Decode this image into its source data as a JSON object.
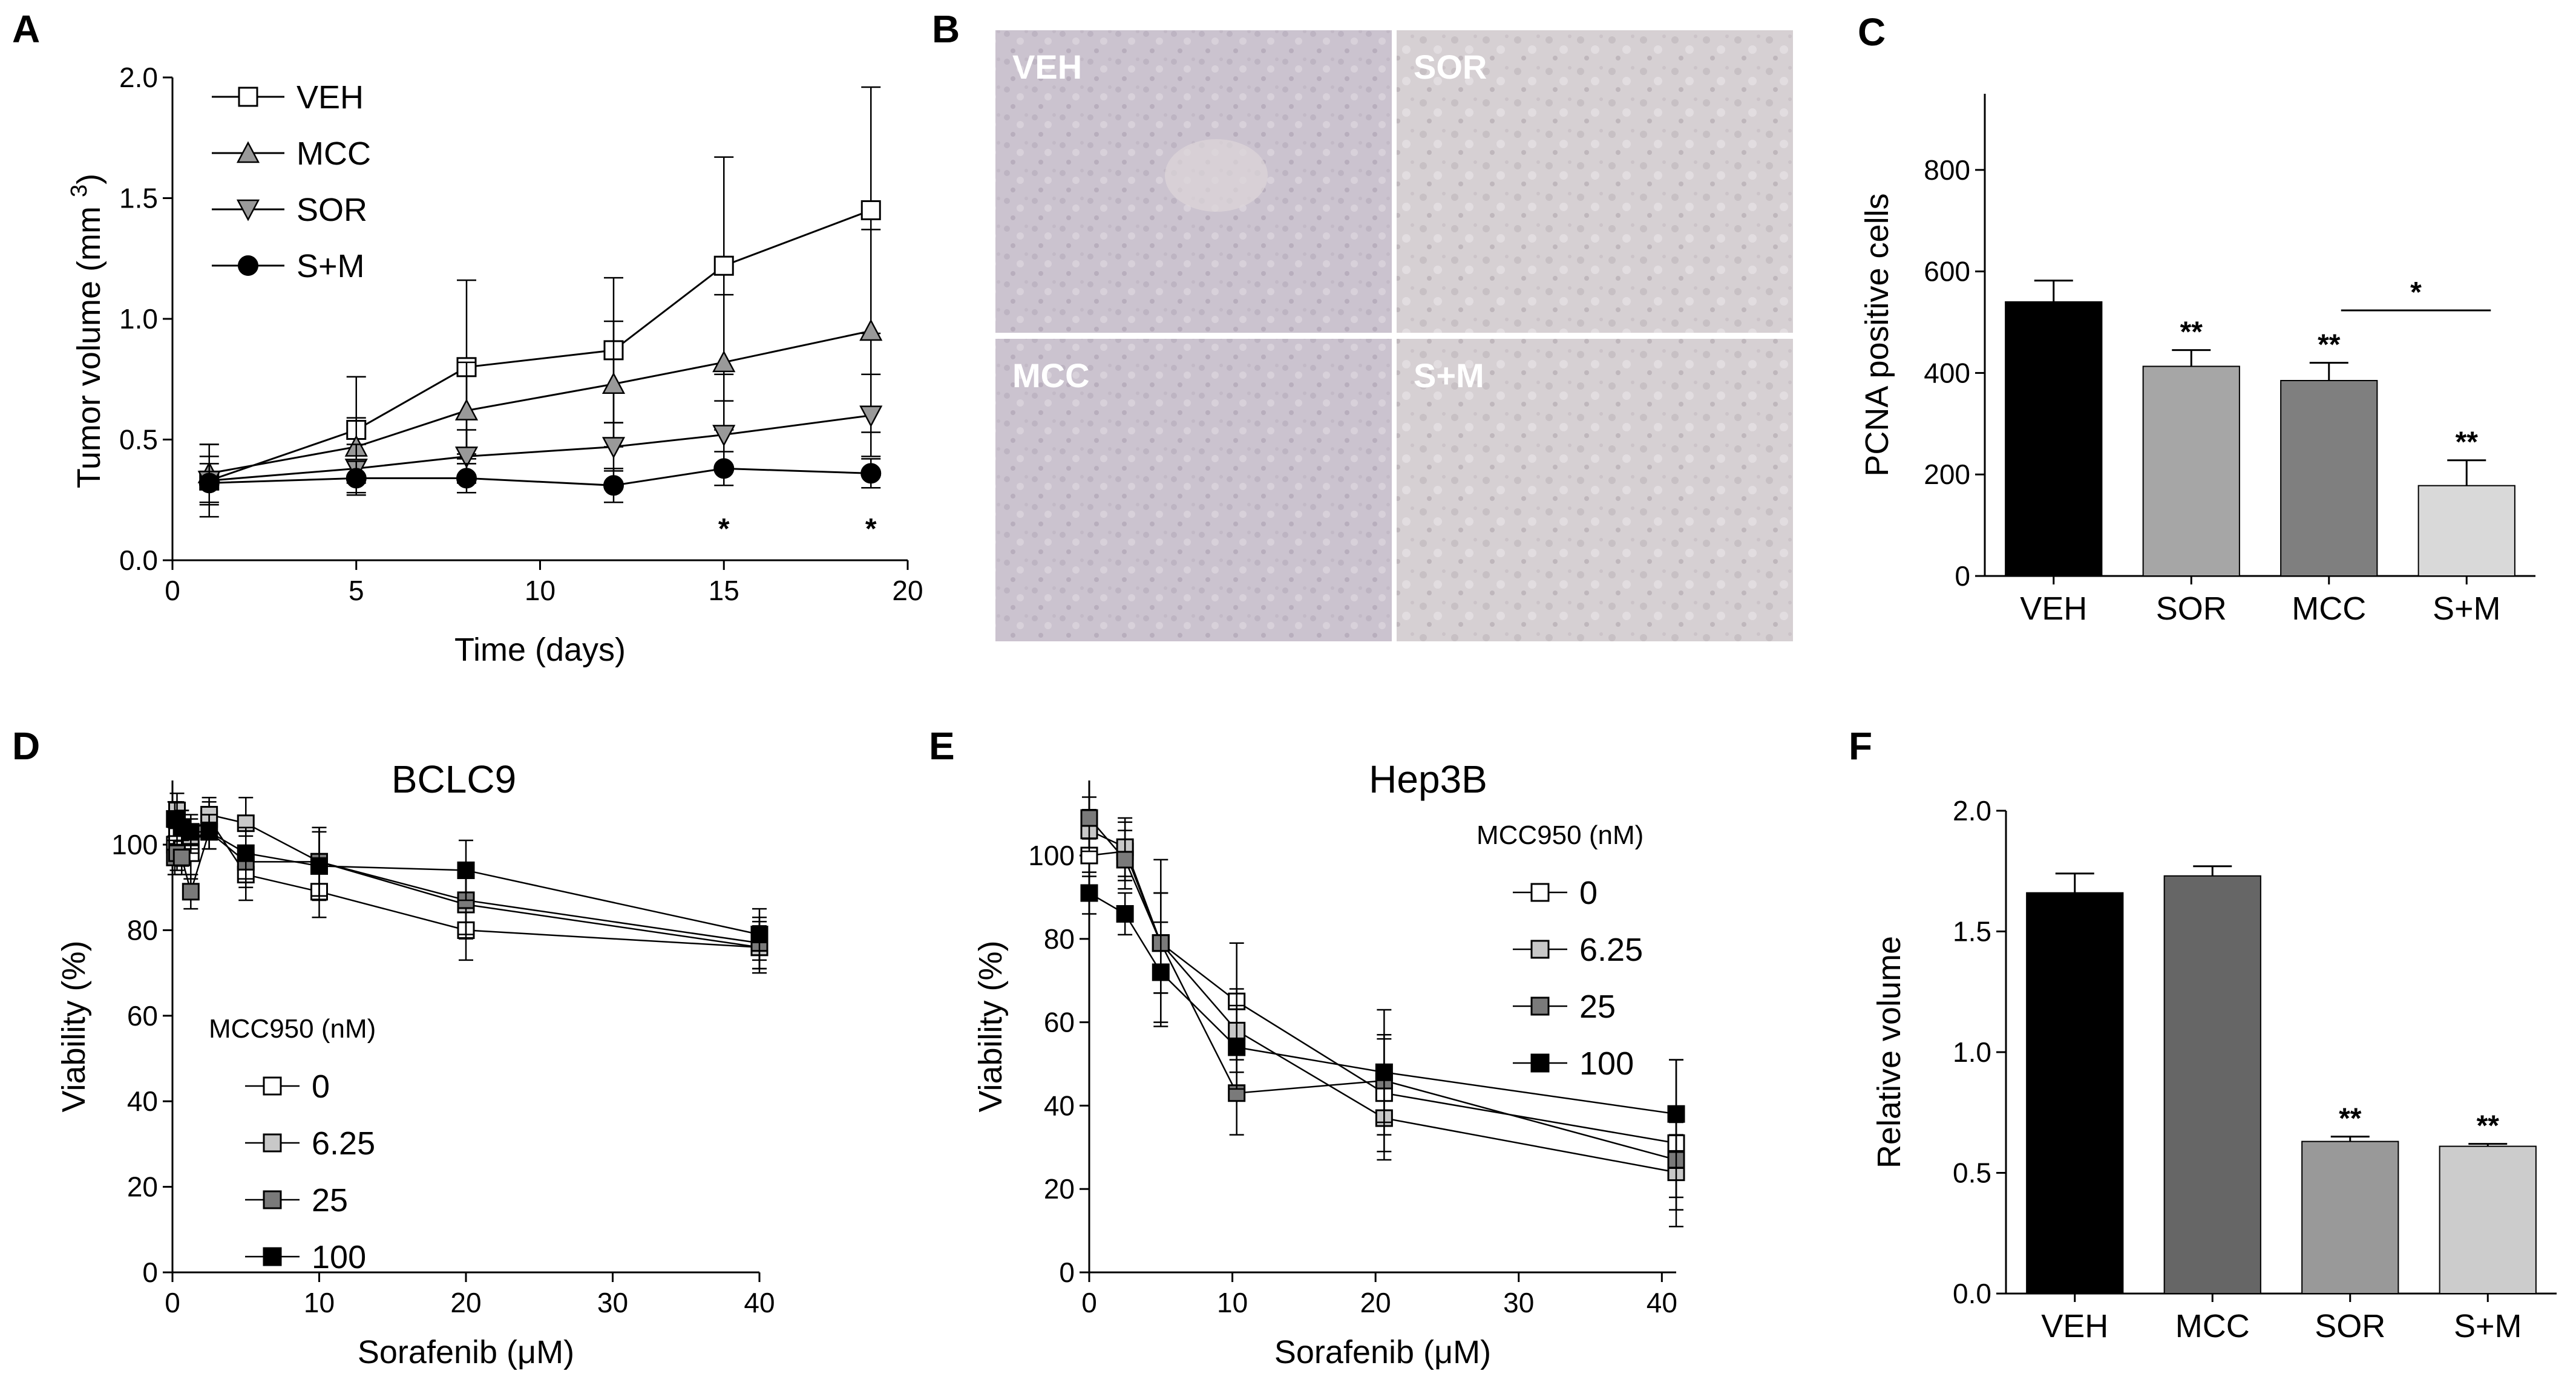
{
  "panels": {
    "A": {
      "letter": "A",
      "chart_data": {
        "type": "line",
        "x": [
          1,
          5,
          8,
          12,
          15,
          19
        ],
        "xlabel": "Time (days)",
        "ylabel": "Tumor volume (mm",
        "ylabel_sup": "3",
        "ylabel_close": ")",
        "xlim": [
          0,
          20
        ],
        "ylim": [
          0,
          2.0
        ],
        "xticks": [
          0,
          5,
          10,
          15,
          20
        ],
        "xtick_labels": [
          "0",
          "5",
          "10",
          "15",
          "20"
        ],
        "yticks": [
          0,
          0.5,
          1.0,
          1.5,
          2.0
        ],
        "ytick_labels": [
          "0.0",
          "0.5",
          "1.0",
          "1.5",
          "2.0"
        ],
        "series": [
          {
            "name": "VEH",
            "marker": "square-open",
            "values": [
              0.33,
              0.54,
              0.8,
              0.87,
              1.22,
              1.45
            ],
            "err": [
              0.15,
              0.22,
              0.36,
              0.3,
              0.45,
              0.51
            ]
          },
          {
            "name": "MCC",
            "marker": "triangle-up",
            "values": [
              0.36,
              0.47,
              0.62,
              0.73,
              0.82,
              0.95
            ],
            "err": [
              0.12,
              0.12,
              0.2,
              0.26,
              0.28,
              0.42
            ]
          },
          {
            "name": "SOR",
            "marker": "triangle-down",
            "values": [
              0.33,
              0.38,
              0.43,
              0.47,
              0.52,
              0.6
            ],
            "err": [
              0.1,
              0.1,
              0.11,
              0.1,
              0.14,
              0.17
            ]
          },
          {
            "name": "S+M",
            "marker": "circle-filled",
            "values": [
              0.32,
              0.34,
              0.34,
              0.31,
              0.38,
              0.36
            ],
            "err": [
              0.08,
              0.07,
              0.06,
              0.07,
              0.07,
              0.06
            ]
          }
        ],
        "annotations": [
          {
            "x": 15,
            "text": "*"
          },
          {
            "x": 19,
            "text": "*"
          }
        ],
        "legend_position": "top-left"
      }
    },
    "B": {
      "letter": "B",
      "images": [
        "VEH",
        "SOR",
        "MCC",
        "S+M"
      ]
    },
    "C": {
      "letter": "C",
      "chart_data": {
        "type": "bar",
        "categories": [
          "VEH",
          "SOR",
          "MCC",
          "S+M"
        ],
        "values": [
          540,
          413,
          385,
          178
        ],
        "err": [
          42,
          32,
          35,
          50
        ],
        "colors": [
          "#000000",
          "#a6a6a6",
          "#7f7f7f",
          "#d9d9d9"
        ],
        "ylabel": "PCNA positive cells",
        "ylim": [
          0,
          950
        ],
        "yticks": [
          0,
          200,
          400,
          600,
          800
        ],
        "ytick_labels": [
          "0",
          "200",
          "400",
          "600",
          "800"
        ],
        "significance": [
          "",
          "**",
          "**",
          "**"
        ],
        "bracket": {
          "from": "MCC",
          "to": "S+M",
          "text": "*"
        }
      }
    },
    "D": {
      "letter": "D",
      "chart_data": {
        "type": "line",
        "title": "BCLC9",
        "xlabel": "Sorafenib (μM)",
        "ylabel": "Viability (%)",
        "xlim": [
          0,
          40
        ],
        "ylim": [
          0,
          115
        ],
        "xticks": [
          0,
          10,
          20,
          30,
          40
        ],
        "xtick_labels": [
          "0",
          "10",
          "20",
          "30",
          "40"
        ],
        "yticks": [
          0,
          20,
          40,
          60,
          80,
          100
        ],
        "ytick_labels": [
          "0",
          "20",
          "40",
          "60",
          "80",
          "100"
        ],
        "x": [
          0.16,
          0.31,
          0.63,
          1.25,
          2.5,
          5,
          10,
          20,
          40
        ],
        "legend_title": "MCC950 (nM)",
        "series": [
          {
            "name": "0",
            "color": "#ffffff",
            "values": [
              100,
              102,
              99,
              98,
              106,
              93,
              89,
              80,
              76
            ],
            "err": [
              4,
              4,
              4,
              6,
              4,
              6,
              6,
              7,
              5
            ]
          },
          {
            "name": "6.25",
            "color": "#c8c8c8",
            "values": [
              106,
              108,
              104,
              102,
              107,
              105,
              96,
              86,
              76
            ],
            "err": [
              4,
              4,
              4,
              4,
              4,
              6,
              8,
              8,
              6
            ]
          },
          {
            "name": "25",
            "color": "#7a7a7a",
            "values": [
              97,
              98,
              97,
              89,
              103,
              96,
              96,
              87,
              77
            ],
            "err": [
              4,
              4,
              4,
              4,
              4,
              6,
              8,
              8,
              6
            ]
          },
          {
            "name": "100",
            "color": "#000000",
            "values": [
              106,
              106,
              104,
              103,
              103,
              98,
              95,
              94,
              79
            ],
            "err": [
              4,
              4,
              4,
              4,
              4,
              6,
              8,
              7,
              6
            ]
          }
        ]
      }
    },
    "E": {
      "letter": "E",
      "chart_data": {
        "type": "line",
        "title": "Hep3B",
        "xlabel": "Sorafenib (μM)",
        "ylabel": "Viability (%)",
        "xlim": [
          0,
          41
        ],
        "ylim": [
          0,
          118
        ],
        "xticks": [
          0,
          10,
          20,
          30,
          40
        ],
        "xtick_labels": [
          "0",
          "10",
          "20",
          "30",
          "40"
        ],
        "yticks": [
          0,
          20,
          40,
          60,
          80,
          100
        ],
        "ytick_labels": [
          "0",
          "20",
          "40",
          "60",
          "80",
          "100"
        ],
        "x": [
          0,
          2.5,
          5,
          10.3,
          20.6,
          41
        ],
        "legend_title": "MCC950 (nM)",
        "series": [
          {
            "name": "0",
            "color": "#ffffff",
            "values": [
              100,
              101,
              79,
              65,
              43,
              31
            ],
            "err": [
              5,
              7,
              20,
              14,
              14,
              20
            ]
          },
          {
            "name": "6.25",
            "color": "#c8c8c8",
            "values": [
              106,
              102,
              79,
              58,
              37,
              24
            ],
            "err": [
              5,
              7,
              12,
              10,
              10,
              9
            ]
          },
          {
            "name": "25",
            "color": "#7a7a7a",
            "values": [
              109,
              99,
              79,
              43,
              46,
              27
            ],
            "err": [
              5,
              7,
              12,
              10,
              10,
              9
            ]
          },
          {
            "name": "100",
            "color": "#000000",
            "values": [
              91,
              86,
              72,
              54,
              48,
              38
            ],
            "err": [
              5,
              5,
              12,
              10,
              15,
              13
            ]
          }
        ]
      }
    },
    "F": {
      "letter": "F",
      "chart_data": {
        "type": "bar",
        "categories": [
          "VEH",
          "MCC",
          "SOR",
          "S+M"
        ],
        "values": [
          1.66,
          1.73,
          0.63,
          0.61
        ],
        "err": [
          0.08,
          0.04,
          0.02,
          0.01
        ],
        "colors": [
          "#000000",
          "#666666",
          "#999999",
          "#cccccc"
        ],
        "ylabel": "Relative volume",
        "ylim": [
          0,
          2.0
        ],
        "yticks": [
          0,
          0.5,
          1.0,
          1.5,
          2.0
        ],
        "ytick_labels": [
          "0.0",
          "0.5",
          "1.0",
          "1.5",
          "2.0"
        ],
        "significance": [
          "",
          "",
          "**",
          "**"
        ]
      }
    }
  }
}
